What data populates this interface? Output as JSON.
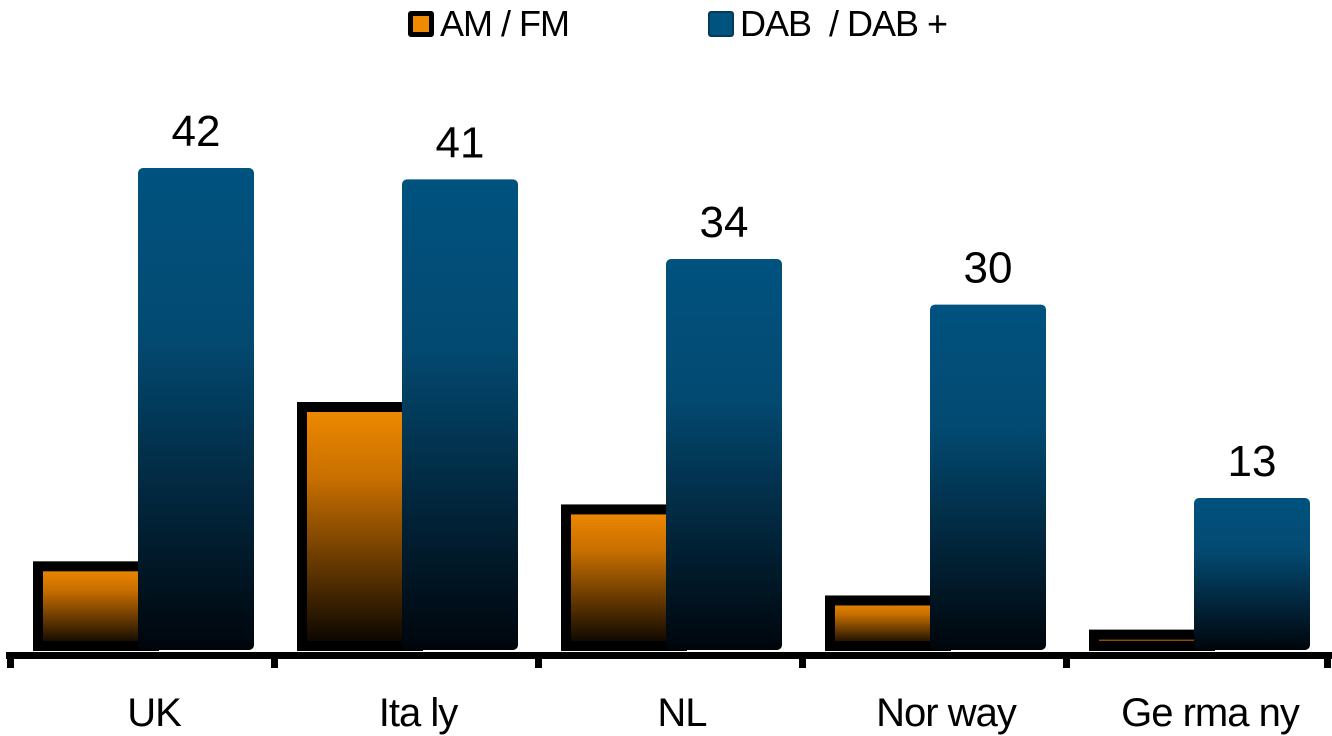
{
  "chart_data": {
    "type": "bar",
    "categories": [
      "UK",
      "Ita ly",
      "NL",
      "Nor way",
      "Ge rma ny"
    ],
    "series": [
      {
        "name": "AM / FM",
        "values": [
          7,
          21,
          12,
          4,
          1
        ],
        "color": "#f08a00",
        "labels": [
          "",
          "",
          "",
          "",
          ""
        ]
      },
      {
        "name": "DAB  / DAB +",
        "values": [
          42,
          41,
          34,
          30,
          13
        ],
        "color": "#00527f",
        "labels": [
          "42",
          "41",
          "34",
          "30",
          "13"
        ]
      }
    ],
    "ylim": [
      0,
      42
    ],
    "grid": false,
    "legend": "top-center",
    "xlabel": "",
    "ylabel": ""
  }
}
